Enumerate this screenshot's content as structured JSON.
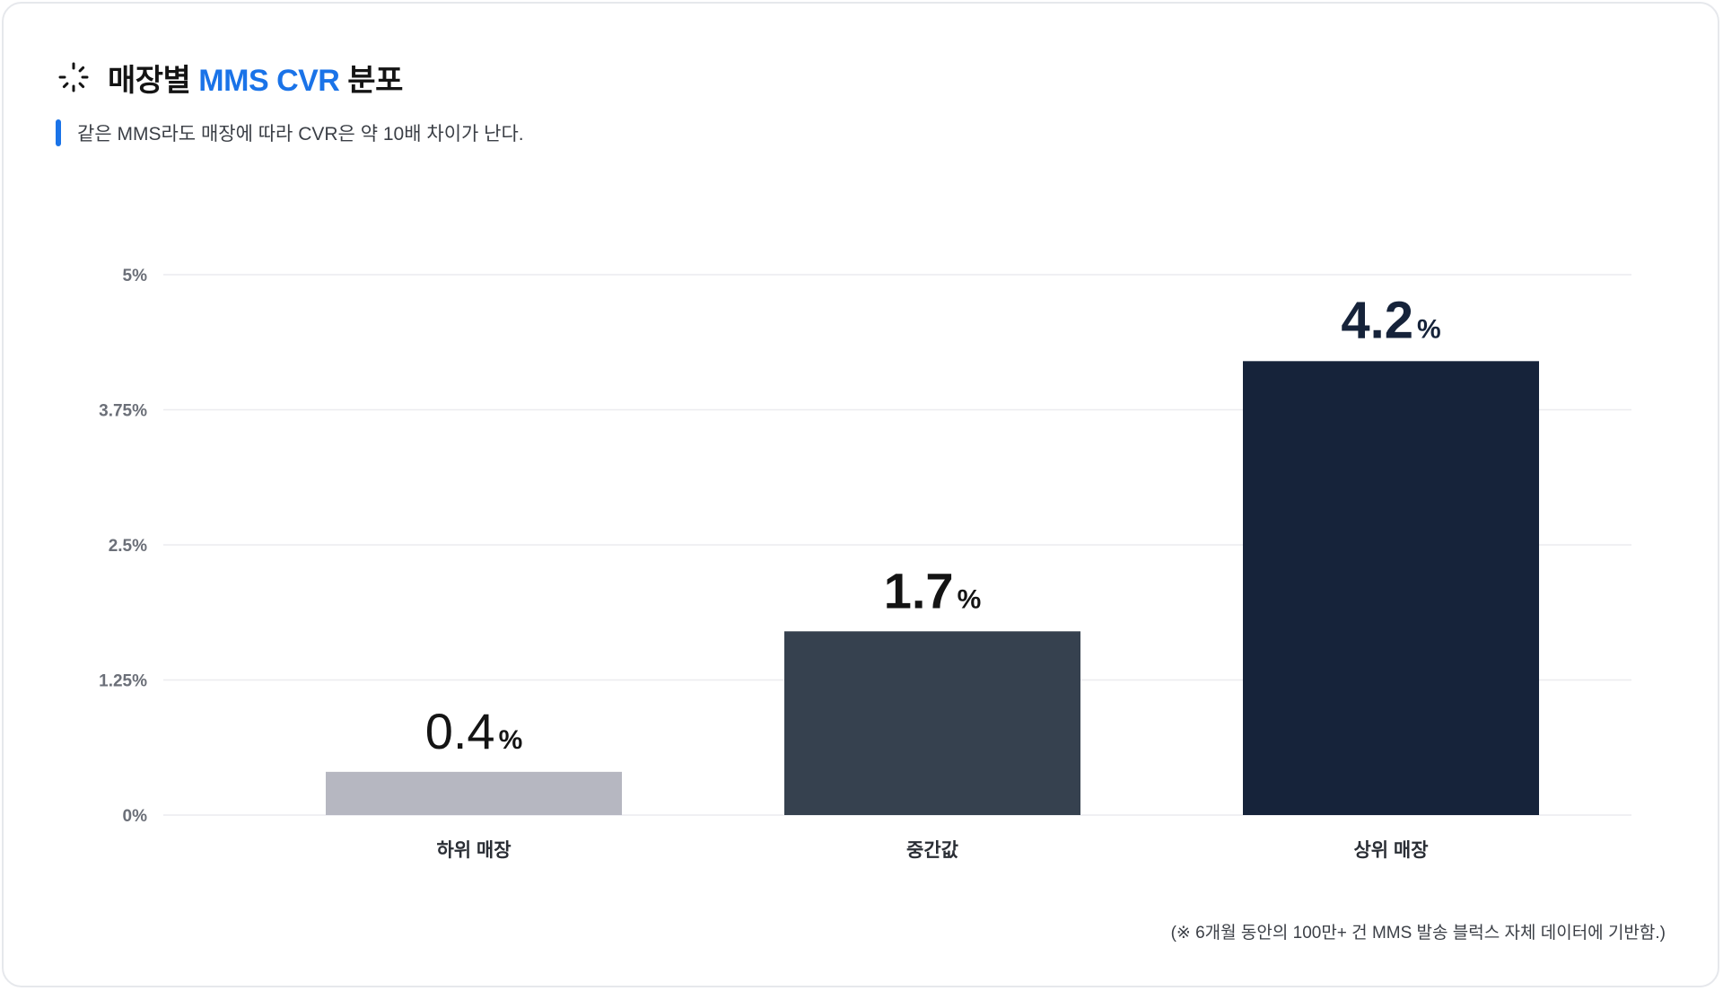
{
  "header": {
    "title_prefix": "매장별 ",
    "title_accent": "MMS CVR",
    "title_suffix": " 분포",
    "icon": "spinner-icon"
  },
  "subtitle": "같은 MMS라도 매장에 따라 CVR은 약 10배 차이가 난다.",
  "footnote": "(※ 6개월 동안의 100만+ 건 MMS 발송 블럭스 자체 데이터에 기반함.)",
  "colors": {
    "accent": "#1a73e8",
    "bar_low": "#b6b7c1",
    "bar_mid": "#36414f",
    "bar_high": "#16233a"
  },
  "chart_data": {
    "type": "bar",
    "categories": [
      "하위 매장",
      "중간값",
      "상위 매장"
    ],
    "values": [
      0.4,
      1.7,
      4.2
    ],
    "value_labels": [
      "0.4",
      "1.7",
      "4.2"
    ],
    "value_unit": "%",
    "yticks": [
      "0%",
      "1.25%",
      "2.5%",
      "3.75%",
      "5%"
    ],
    "ytick_values": [
      0,
      1.25,
      2.5,
      3.75,
      5
    ],
    "ylim": [
      0,
      5
    ],
    "grid": true,
    "legend": "none"
  }
}
